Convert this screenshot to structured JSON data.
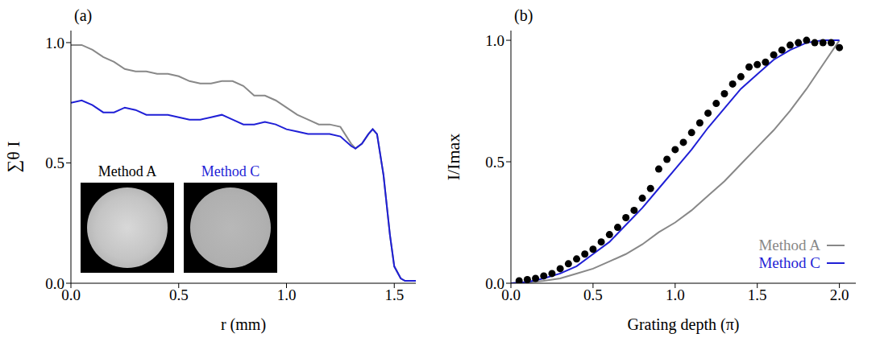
{
  "chart_data": [
    {
      "type": "line",
      "title": "(a)",
      "x_label": "r (mm)",
      "y_label": "∑θ I",
      "xlim": [
        0,
        1.6
      ],
      "xticks": [
        {
          "value": 0,
          "label": "0.0"
        },
        {
          "value": 0.5,
          "label": "0.5"
        },
        {
          "value": 1,
          "label": "1.0"
        },
        {
          "value": 1.5,
          "label": "1.5"
        }
      ],
      "ylim": [
        0,
        1.05
      ],
      "yticks": [
        {
          "value": 0,
          "label": "0.0"
        },
        {
          "value": 0.5,
          "label": "0.5"
        },
        {
          "value": 1,
          "label": "1.0"
        }
      ],
      "series": [
        {
          "color": "#888888",
          "x": [
            0,
            0.05,
            0.1,
            0.15,
            0.2,
            0.25,
            0.3,
            0.35,
            0.4,
            0.45,
            0.5,
            0.55,
            0.6,
            0.65,
            0.7,
            0.75,
            0.8,
            0.85,
            0.9,
            0.95,
            1.0,
            1.05,
            1.1,
            1.15,
            1.2,
            1.25,
            1.3,
            1.32,
            1.35,
            1.38,
            1.4,
            1.42,
            1.45,
            1.48,
            1.5,
            1.53,
            1.55,
            1.6
          ],
          "values": [
            0.99,
            0.99,
            0.97,
            0.94,
            0.92,
            0.89,
            0.88,
            0.88,
            0.87,
            0.87,
            0.86,
            0.84,
            0.83,
            0.83,
            0.84,
            0.84,
            0.82,
            0.78,
            0.78,
            0.76,
            0.73,
            0.7,
            0.68,
            0.66,
            0.66,
            0.65,
            0.58,
            0.56,
            0.58,
            0.62,
            0.64,
            0.62,
            0.45,
            0.2,
            0.07,
            0.02,
            0.01,
            0.01
          ]
        },
        {
          "color": "#1f1fd6",
          "x": [
            0,
            0.05,
            0.1,
            0.15,
            0.2,
            0.25,
            0.3,
            0.35,
            0.4,
            0.45,
            0.5,
            0.55,
            0.6,
            0.65,
            0.7,
            0.75,
            0.8,
            0.85,
            0.9,
            0.95,
            1.0,
            1.05,
            1.1,
            1.15,
            1.2,
            1.25,
            1.3,
            1.32,
            1.35,
            1.38,
            1.4,
            1.42,
            1.45,
            1.48,
            1.5,
            1.53,
            1.55,
            1.6
          ],
          "values": [
            0.75,
            0.76,
            0.74,
            0.71,
            0.71,
            0.73,
            0.72,
            0.7,
            0.7,
            0.7,
            0.69,
            0.68,
            0.68,
            0.69,
            0.7,
            0.68,
            0.66,
            0.66,
            0.67,
            0.66,
            0.64,
            0.63,
            0.62,
            0.62,
            0.62,
            0.61,
            0.57,
            0.56,
            0.58,
            0.62,
            0.64,
            0.62,
            0.45,
            0.2,
            0.07,
            0.02,
            0.01,
            0.01
          ]
        }
      ],
      "annotations": [
        {
          "text": "Method A",
          "color": "#000000"
        },
        {
          "text": "Method C",
          "color": "#1f1fd6"
        }
      ]
    },
    {
      "type": "line",
      "title": "(b)",
      "x_label": "Grating depth (π)",
      "y_label": "I/Imax",
      "xlim": [
        0,
        2.1
      ],
      "xticks": [
        {
          "value": 0,
          "label": "0.0"
        },
        {
          "value": 0.5,
          "label": "0.5"
        },
        {
          "value": 1,
          "label": "1.0"
        },
        {
          "value": 1.5,
          "label": "1.5"
        },
        {
          "value": 2,
          "label": "2.0"
        }
      ],
      "ylim": [
        0,
        1.04
      ],
      "yticks": [
        {
          "value": 0,
          "label": "0.0"
        },
        {
          "value": 0.5,
          "label": "0.5"
        },
        {
          "value": 1,
          "label": "1.0"
        }
      ],
      "legend": "lower right",
      "series": [
        {
          "type": "scatter",
          "marker": "circle",
          "color": "#000000",
          "x": [
            0.05,
            0.1,
            0.15,
            0.2,
            0.25,
            0.3,
            0.35,
            0.4,
            0.45,
            0.5,
            0.55,
            0.6,
            0.65,
            0.7,
            0.75,
            0.8,
            0.85,
            0.9,
            0.95,
            1.0,
            1.05,
            1.1,
            1.15,
            1.2,
            1.25,
            1.3,
            1.35,
            1.4,
            1.45,
            1.5,
            1.55,
            1.6,
            1.65,
            1.7,
            1.75,
            1.8,
            1.85,
            1.9,
            1.95,
            2.0
          ],
          "values": [
            0.01,
            0.015,
            0.02,
            0.03,
            0.04,
            0.06,
            0.08,
            0.1,
            0.12,
            0.14,
            0.17,
            0.2,
            0.23,
            0.27,
            0.3,
            0.35,
            0.39,
            0.47,
            0.51,
            0.55,
            0.58,
            0.62,
            0.66,
            0.7,
            0.74,
            0.78,
            0.82,
            0.85,
            0.89,
            0.9,
            0.91,
            0.94,
            0.96,
            0.98,
            0.99,
            1.0,
            0.99,
            0.99,
            0.99,
            0.97
          ]
        },
        {
          "type": "line",
          "name": "Method A",
          "color": "#888888",
          "x": [
            0,
            0.1,
            0.2,
            0.3,
            0.4,
            0.5,
            0.6,
            0.7,
            0.8,
            0.9,
            1.0,
            1.1,
            1.2,
            1.3,
            1.4,
            1.5,
            1.6,
            1.7,
            1.8,
            1.9,
            2.0
          ],
          "values": [
            0,
            0.003,
            0.01,
            0.02,
            0.04,
            0.06,
            0.09,
            0.12,
            0.16,
            0.21,
            0.25,
            0.3,
            0.36,
            0.42,
            0.49,
            0.56,
            0.63,
            0.71,
            0.8,
            0.9,
            1.0
          ]
        },
        {
          "type": "line",
          "name": "Method C",
          "color": "#1f1fd6",
          "x": [
            0,
            0.1,
            0.2,
            0.3,
            0.4,
            0.5,
            0.6,
            0.7,
            0.8,
            0.9,
            1.0,
            1.1,
            1.2,
            1.3,
            1.4,
            1.5,
            1.6,
            1.7,
            1.8,
            1.9,
            2.0
          ],
          "values": [
            0,
            0.005,
            0.02,
            0.04,
            0.07,
            0.12,
            0.17,
            0.24,
            0.31,
            0.39,
            0.47,
            0.55,
            0.64,
            0.72,
            0.8,
            0.86,
            0.92,
            0.96,
            0.99,
            1.0,
            1.0
          ]
        }
      ]
    }
  ]
}
